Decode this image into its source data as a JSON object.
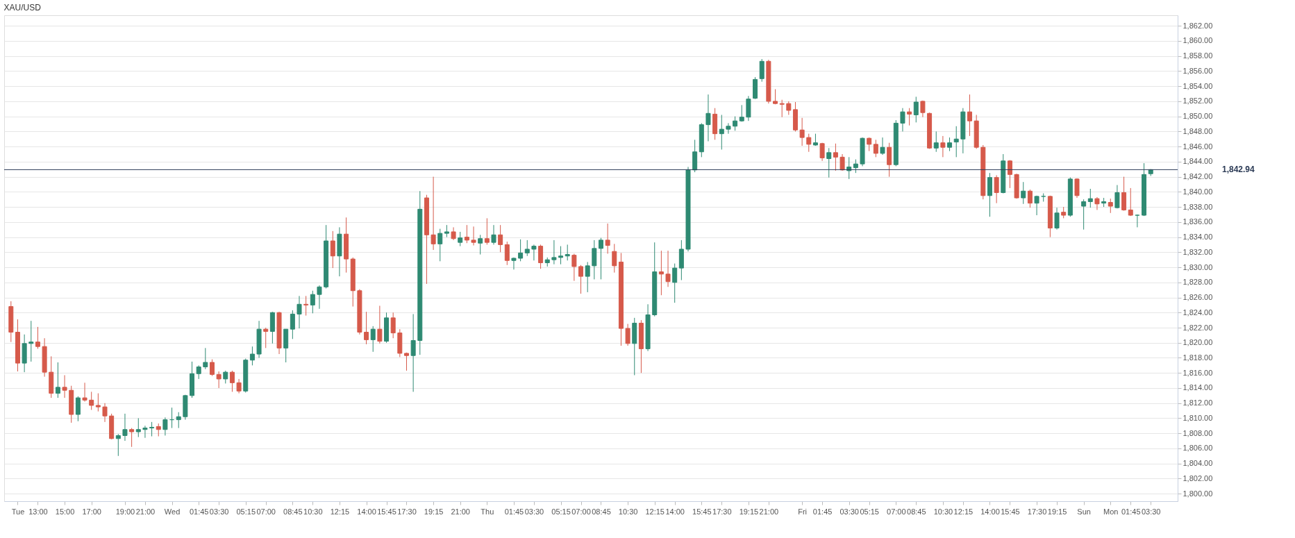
{
  "chart_data": {
    "type": "candlestick",
    "title": "XAU/USD",
    "categories": [
      null,
      "Tue",
      null,
      null,
      "13:00",
      null,
      null,
      null,
      "15:00",
      null,
      null,
      null,
      "17:00",
      null,
      null,
      null,
      null,
      "19:00",
      null,
      null,
      "21:00",
      null,
      null,
      null,
      "Wed",
      null,
      null,
      null,
      "01:45",
      null,
      null,
      "03:30",
      null,
      null,
      null,
      "05:15",
      null,
      null,
      "07:00",
      null,
      null,
      null,
      "08:45",
      null,
      null,
      "10:30",
      null,
      null,
      null,
      "12:15",
      null,
      null,
      null,
      "14:00",
      null,
      null,
      "15:45",
      null,
      null,
      "17:30",
      null,
      null,
      null,
      "19:15",
      null,
      null,
      null,
      "21:00",
      null,
      null,
      null,
      "Thu",
      null,
      null,
      null,
      "01:45",
      null,
      null,
      "03:30",
      null,
      null,
      null,
      "05:15",
      null,
      null,
      "07:00",
      null,
      null,
      "08:45",
      null,
      null,
      null,
      "10:30",
      null,
      null,
      null,
      "12:15",
      null,
      null,
      "14:00",
      null,
      null,
      null,
      "15:45",
      null,
      null,
      "17:30",
      null,
      null,
      null,
      "19:15",
      null,
      null,
      "21:00",
      null,
      null,
      null,
      null,
      "Fri",
      null,
      null,
      "01:45",
      null,
      null,
      null,
      "03:30",
      null,
      null,
      "05:15",
      null,
      null,
      null,
      "07:00",
      null,
      null,
      "08:45",
      null,
      null,
      null,
      "10:30",
      null,
      null,
      "12:15",
      null,
      null,
      null,
      "14:00",
      null,
      null,
      "15:45",
      null,
      null,
      null,
      "17:30",
      null,
      null,
      "19:15",
      null,
      null,
      null,
      "Sun",
      null,
      null,
      null,
      "Mon",
      null,
      null,
      "01:45",
      null,
      null,
      "03:30"
    ],
    "ohlc": [
      [
        1824.8,
        1825.5,
        1820.1,
        1821.4
      ],
      [
        1821.4,
        1823.1,
        1816.2,
        1817.3
      ],
      [
        1817.3,
        1821.1,
        1816.1,
        1819.9
      ],
      [
        1819.9,
        1822.9,
        1817.5,
        1820.1
      ],
      [
        1820.1,
        1822.1,
        1819.2,
        1819.5
      ],
      [
        1819.5,
        1820.6,
        1815.5,
        1816.1
      ],
      [
        1816.1,
        1818.2,
        1812.7,
        1813.3
      ],
      [
        1813.3,
        1817.4,
        1812.7,
        1814.1
      ],
      [
        1814.1,
        1815.7,
        1812.7,
        1813.7
      ],
      [
        1813.7,
        1814.3,
        1809.4,
        1810.5
      ],
      [
        1810.5,
        1812.9,
        1809.6,
        1812.7
      ],
      [
        1812.7,
        1814.7,
        1812.2,
        1812.4
      ],
      [
        1812.4,
        1813.5,
        1811.1,
        1811.7
      ],
      [
        1811.7,
        1813.3,
        1810.9,
        1811.5
      ],
      [
        1811.5,
        1812.0,
        1809.5,
        1810.3
      ],
      [
        1810.3,
        1810.6,
        1807.2,
        1807.3
      ],
      [
        1807.3,
        1807.9,
        1805.0,
        1807.7
      ],
      [
        1807.7,
        1810.6,
        1807.0,
        1808.5
      ],
      [
        1808.5,
        1808.7,
        1806.2,
        1808.2
      ],
      [
        1808.2,
        1810.0,
        1807.5,
        1808.5
      ],
      [
        1808.5,
        1809.0,
        1807.4,
        1808.7
      ],
      [
        1808.7,
        1809.5,
        1807.6,
        1808.8
      ],
      [
        1808.9,
        1809.3,
        1807.6,
        1808.5
      ],
      [
        1808.5,
        1810.1,
        1807.7,
        1809.8
      ],
      [
        1809.8,
        1811.4,
        1808.7,
        1809.8
      ],
      [
        1809.8,
        1810.8,
        1808.7,
        1810.2
      ],
      [
        1810.2,
        1813.1,
        1809.8,
        1813.0
      ],
      [
        1813.0,
        1817.5,
        1812.7,
        1815.9
      ],
      [
        1815.9,
        1817.0,
        1815.2,
        1816.8
      ],
      [
        1816.8,
        1819.3,
        1816.5,
        1817.4
      ],
      [
        1817.4,
        1817.8,
        1815.6,
        1815.8
      ],
      [
        1815.8,
        1816.2,
        1814.0,
        1815.2
      ],
      [
        1815.2,
        1816.3,
        1814.6,
        1816.1
      ],
      [
        1816.1,
        1816.3,
        1813.5,
        1814.7
      ],
      [
        1814.7,
        1815.2,
        1813.3,
        1813.6
      ],
      [
        1813.6,
        1817.9,
        1813.4,
        1817.7
      ],
      [
        1817.7,
        1819.5,
        1817.0,
        1818.5
      ],
      [
        1818.5,
        1822.9,
        1818.0,
        1821.8
      ],
      [
        1821.8,
        1822.0,
        1819.3,
        1821.5
      ],
      [
        1821.5,
        1824.1,
        1819.9,
        1824.0
      ],
      [
        1824.0,
        1824.1,
        1818.5,
        1819.3
      ],
      [
        1819.3,
        1821.8,
        1817.4,
        1821.8
      ],
      [
        1821.8,
        1824.3,
        1820.5,
        1823.8
      ],
      [
        1823.8,
        1826.2,
        1821.9,
        1825.1
      ],
      [
        1825.1,
        1826.2,
        1823.6,
        1825.0
      ],
      [
        1825.0,
        1826.9,
        1823.9,
        1826.4
      ],
      [
        1826.4,
        1827.6,
        1824.5,
        1827.4
      ],
      [
        1827.4,
        1835.6,
        1827.2,
        1833.5
      ],
      [
        1833.5,
        1834.8,
        1829.9,
        1831.5
      ],
      [
        1831.5,
        1835.3,
        1828.8,
        1834.4
      ],
      [
        1834.4,
        1836.6,
        1829.3,
        1831.1
      ],
      [
        1831.1,
        1831.3,
        1824.8,
        1826.9
      ],
      [
        1826.9,
        1827.1,
        1821.1,
        1821.4
      ],
      [
        1821.4,
        1824.1,
        1819.8,
        1820.4
      ],
      [
        1820.4,
        1822.2,
        1818.8,
        1821.8
      ],
      [
        1821.8,
        1824.9,
        1819.9,
        1820.2
      ],
      [
        1820.2,
        1824.0,
        1820.0,
        1823.3
      ],
      [
        1823.3,
        1824.0,
        1820.6,
        1821.3
      ],
      [
        1821.3,
        1821.8,
        1818.1,
        1818.6
      ],
      [
        1818.6,
        1818.7,
        1816.3,
        1818.3
      ],
      [
        1818.3,
        1823.8,
        1813.5,
        1820.3
      ],
      [
        1820.3,
        1840.1,
        1818.4,
        1837.7
      ],
      [
        1839.2,
        1839.6,
        1827.8,
        1834.3
      ],
      [
        1834.3,
        1842.0,
        1832.3,
        1833.1
      ],
      [
        1833.1,
        1835.1,
        1830.8,
        1834.5
      ],
      [
        1834.5,
        1835.6,
        1834.0,
        1834.7
      ],
      [
        1834.7,
        1835.3,
        1833.6,
        1833.8
      ],
      [
        1833.3,
        1834.7,
        1832.8,
        1833.9
      ],
      [
        1834.0,
        1835.6,
        1833.2,
        1833.6
      ],
      [
        1833.6,
        1835.4,
        1832.9,
        1833.3
      ],
      [
        1833.2,
        1834.3,
        1831.7,
        1833.8
      ],
      [
        1833.8,
        1836.5,
        1833.0,
        1833.3
      ],
      [
        1833.3,
        1835.6,
        1833.0,
        1834.3
      ],
      [
        1834.3,
        1835.6,
        1832.0,
        1833.0
      ],
      [
        1833.0,
        1833.4,
        1830.3,
        1830.9
      ],
      [
        1830.9,
        1831.3,
        1829.7,
        1831.2
      ],
      [
        1831.2,
        1833.7,
        1830.8,
        1831.9
      ],
      [
        1831.9,
        1833.6,
        1831.5,
        1832.4
      ],
      [
        1832.4,
        1833.0,
        1830.9,
        1832.8
      ],
      [
        1832.8,
        1833.0,
        1829.8,
        1830.6
      ],
      [
        1830.6,
        1831.3,
        1830.1,
        1831.0
      ],
      [
        1831.0,
        1833.6,
        1830.4,
        1831.3
      ],
      [
        1831.3,
        1832.8,
        1830.4,
        1831.5
      ],
      [
        1831.5,
        1833.0,
        1830.9,
        1831.7
      ],
      [
        1831.6,
        1831.8,
        1828.2,
        1830.1
      ],
      [
        1830.1,
        1830.3,
        1826.5,
        1828.8
      ],
      [
        1828.8,
        1830.7,
        1826.7,
        1830.2
      ],
      [
        1830.2,
        1833.6,
        1828.4,
        1832.5
      ],
      [
        1832.5,
        1833.9,
        1828.4,
        1833.6
      ],
      [
        1833.6,
        1835.8,
        1831.8,
        1832.9
      ],
      [
        1832.1,
        1833.1,
        1829.3,
        1830.2
      ],
      [
        1830.7,
        1831.9,
        1819.6,
        1821.9
      ],
      [
        1821.9,
        1822.5,
        1819.6,
        1819.9
      ],
      [
        1819.9,
        1823.3,
        1815.7,
        1822.6
      ],
      [
        1822.6,
        1823.0,
        1816.0,
        1819.2
      ],
      [
        1819.2,
        1825.1,
        1818.9,
        1823.7
      ],
      [
        1823.7,
        1833.3,
        1823.5,
        1829.4
      ],
      [
        1829.4,
        1832.2,
        1826.3,
        1829.1
      ],
      [
        1829.1,
        1832.2,
        1827.4,
        1828.1
      ],
      [
        1828.0,
        1830.5,
        1825.3,
        1829.9
      ],
      [
        1829.9,
        1833.6,
        1828.3,
        1832.4
      ],
      [
        1832.4,
        1843.3,
        1832.1,
        1842.9
      ],
      [
        1842.9,
        1846.9,
        1842.6,
        1845.3
      ],
      [
        1845.3,
        1849.1,
        1844.6,
        1848.9
      ],
      [
        1848.9,
        1852.9,
        1846.7,
        1850.4
      ],
      [
        1850.3,
        1851.1,
        1846.9,
        1847.7
      ],
      [
        1847.7,
        1850.2,
        1845.6,
        1848.3
      ],
      [
        1848.3,
        1849.1,
        1847.7,
        1848.7
      ],
      [
        1848.7,
        1850.0,
        1848.1,
        1849.4
      ],
      [
        1849.4,
        1851.5,
        1849.3,
        1849.9
      ],
      [
        1849.9,
        1852.7,
        1849.4,
        1852.3
      ],
      [
        1852.4,
        1855.2,
        1852.3,
        1854.9
      ],
      [
        1855.0,
        1857.6,
        1854.6,
        1857.3
      ],
      [
        1857.3,
        1857.5,
        1851.7,
        1852.0
      ],
      [
        1852.0,
        1853.6,
        1851.6,
        1851.7
      ],
      [
        1851.7,
        1852.2,
        1849.9,
        1851.6
      ],
      [
        1851.7,
        1852.0,
        1850.2,
        1850.8
      ],
      [
        1850.9,
        1851.9,
        1848.0,
        1848.2
      ],
      [
        1848.2,
        1849.8,
        1846.1,
        1847.2
      ],
      [
        1847.2,
        1847.7,
        1845.3,
        1846.3
      ],
      [
        1846.2,
        1847.7,
        1846.1,
        1846.5
      ],
      [
        1846.4,
        1846.5,
        1844.1,
        1844.5
      ],
      [
        1844.4,
        1845.8,
        1841.9,
        1845.2
      ],
      [
        1845.2,
        1846.4,
        1842.8,
        1844.6
      ],
      [
        1844.6,
        1845.0,
        1842.8,
        1842.9
      ],
      [
        1842.8,
        1844.6,
        1841.7,
        1843.3
      ],
      [
        1843.2,
        1844.3,
        1842.5,
        1843.7
      ],
      [
        1843.7,
        1847.2,
        1843.4,
        1847.1
      ],
      [
        1847.1,
        1847.2,
        1845.4,
        1846.3
      ],
      [
        1846.3,
        1846.9,
        1844.6,
        1845.1
      ],
      [
        1845.1,
        1847.2,
        1844.9,
        1845.9
      ],
      [
        1845.9,
        1846.5,
        1842.0,
        1843.6
      ],
      [
        1843.6,
        1849.5,
        1843.4,
        1849.1
      ],
      [
        1849.1,
        1851.1,
        1848.0,
        1850.6
      ],
      [
        1850.6,
        1851.1,
        1848.8,
        1850.3
      ],
      [
        1850.2,
        1852.6,
        1849.2,
        1851.9
      ],
      [
        1852.0,
        1852.1,
        1849.9,
        1850.5
      ],
      [
        1850.4,
        1850.5,
        1845.7,
        1845.8
      ],
      [
        1845.8,
        1848.0,
        1845.3,
        1846.5
      ],
      [
        1846.5,
        1847.4,
        1844.6,
        1845.9
      ],
      [
        1845.9,
        1847.2,
        1845.4,
        1846.5
      ],
      [
        1846.6,
        1848.7,
        1844.6,
        1847.0
      ],
      [
        1847.0,
        1851.1,
        1845.1,
        1850.6
      ],
      [
        1850.6,
        1852.9,
        1847.4,
        1849.4
      ],
      [
        1849.4,
        1850.2,
        1845.7,
        1845.9
      ],
      [
        1845.9,
        1846.2,
        1839.0,
        1839.5
      ],
      [
        1839.5,
        1842.5,
        1836.7,
        1841.9
      ],
      [
        1841.9,
        1842.2,
        1838.5,
        1839.9
      ],
      [
        1839.9,
        1845.0,
        1839.8,
        1844.1
      ],
      [
        1844.1,
        1844.2,
        1840.5,
        1842.3
      ],
      [
        1842.3,
        1842.4,
        1839.1,
        1839.2
      ],
      [
        1839.2,
        1841.3,
        1838.4,
        1840.1
      ],
      [
        1840.1,
        1840.3,
        1837.9,
        1838.5
      ],
      [
        1838.5,
        1839.5,
        1836.9,
        1839.4
      ],
      [
        1839.4,
        1839.8,
        1838.7,
        1839.4
      ],
      [
        1839.4,
        1839.5,
        1834.0,
        1835.2
      ],
      [
        1835.2,
        1837.9,
        1835.0,
        1837.2
      ],
      [
        1837.3,
        1838.0,
        1836.5,
        1836.9
      ],
      [
        1836.9,
        1841.9,
        1836.7,
        1841.7
      ],
      [
        1841.7,
        1841.8,
        1839.2,
        1839.5
      ],
      [
        1838.1,
        1839.0,
        1835.0,
        1838.7
      ],
      [
        1838.7,
        1840.4,
        1837.9,
        1839.1
      ],
      [
        1839.1,
        1839.3,
        1837.6,
        1838.4
      ],
      [
        1838.5,
        1839.2,
        1838.0,
        1838.7
      ],
      [
        1838.6,
        1839.1,
        1837.2,
        1838.1
      ],
      [
        1837.9,
        1840.9,
        1837.8,
        1839.9
      ],
      [
        1839.9,
        1842.0,
        1837.5,
        1837.6
      ],
      [
        1837.6,
        1840.5,
        1836.8,
        1836.9
      ],
      [
        1836.9,
        1837.0,
        1835.3,
        1836.9
      ],
      [
        1836.9,
        1843.8,
        1836.8,
        1842.3
      ],
      [
        1842.4,
        1843.0,
        1842.1,
        1842.94
      ]
    ],
    "colors": [
      "#d65a4b",
      "#d65a4b",
      "#2f8a73",
      "#2f8a73",
      "#d65a4b",
      "#d65a4b",
      "#d65a4b",
      "#2f8a73",
      "#d65a4b",
      "#d65a4b",
      "#2f8a73",
      "#d65a4b",
      "#d65a4b",
      "#d65a4b",
      "#d65a4b",
      "#d65a4b",
      "#2f8a73",
      "#2f8a73",
      "#d65a4b",
      "#2f8a73",
      "#2f8a73",
      "#2f8a73",
      "#d65a4b",
      "#2f8a73",
      "#2f8a73",
      "#2f8a73",
      "#2f8a73",
      "#2f8a73",
      "#2f8a73",
      "#2f8a73",
      "#d65a4b",
      "#d65a4b",
      "#2f8a73",
      "#d65a4b",
      "#d65a4b",
      "#2f8a73",
      "#2f8a73",
      "#2f8a73",
      "#d65a4b",
      "#2f8a73",
      "#d65a4b",
      "#2f8a73",
      "#2f8a73",
      "#2f8a73",
      "#d65a4b",
      "#2f8a73",
      "#2f8a73",
      "#2f8a73",
      "#d65a4b",
      "#2f8a73",
      "#d65a4b",
      "#d65a4b",
      "#d65a4b",
      "#d65a4b",
      "#2f8a73",
      "#d65a4b",
      "#2f8a73",
      "#d65a4b",
      "#d65a4b",
      "#d65a4b",
      "#2f8a73",
      "#2f8a73",
      "#d65a4b",
      "#d65a4b",
      "#2f8a73",
      "#2f8a73",
      "#d65a4b",
      "#2f8a73",
      "#d65a4b",
      "#d65a4b",
      "#2f8a73",
      "#d65a4b",
      "#2f8a73",
      "#d65a4b",
      "#d65a4b",
      "#2f8a73",
      "#2f8a73",
      "#2f8a73",
      "#2f8a73",
      "#d65a4b",
      "#2f8a73",
      "#2f8a73",
      "#2f8a73",
      "#2f8a73",
      "#d65a4b",
      "#d65a4b",
      "#2f8a73",
      "#2f8a73",
      "#2f8a73",
      "#d65a4b",
      "#d65a4b",
      "#d65a4b",
      "#d65a4b",
      "#2f8a73",
      "#d65a4b",
      "#2f8a73",
      "#2f8a73",
      "#d65a4b",
      "#d65a4b",
      "#2f8a73",
      "#2f8a73",
      "#2f8a73",
      "#2f8a73",
      "#2f8a73",
      "#2f8a73",
      "#d65a4b",
      "#2f8a73",
      "#2f8a73",
      "#2f8a73",
      "#2f8a73",
      "#2f8a73",
      "#2f8a73",
      "#2f8a73",
      "#d65a4b",
      "#d65a4b",
      "#d65a4b",
      "#d65a4b",
      "#d65a4b",
      "#d65a4b",
      "#d65a4b",
      "#2f8a73",
      "#d65a4b",
      "#2f8a73",
      "#d65a4b",
      "#d65a4b",
      "#2f8a73",
      "#2f8a73",
      "#2f8a73",
      "#d65a4b",
      "#d65a4b",
      "#2f8a73",
      "#d65a4b",
      "#2f8a73",
      "#2f8a73",
      "#d65a4b",
      "#2f8a73",
      "#d65a4b",
      "#d65a4b",
      "#2f8a73",
      "#d65a4b",
      "#2f8a73",
      "#2f8a73",
      "#2f8a73",
      "#d65a4b",
      "#d65a4b",
      "#d65a4b",
      "#2f8a73",
      "#d65a4b",
      "#2f8a73",
      "#d65a4b",
      "#d65a4b",
      "#2f8a73",
      "#d65a4b",
      "#2f8a73",
      "#2f8a73",
      "#d65a4b",
      "#2f8a73",
      "#d65a4b",
      "#2f8a73",
      "#d65a4b",
      "#2f8a73",
      "#2f8a73",
      "#d65a4b",
      "#2f8a73",
      "#d65a4b",
      "#2f8a73",
      "#d65a4b",
      "#d65a4b",
      "#2f8a73",
      "#2f8a73",
      "#2f8a73"
    ],
    "ylim": [
      1799,
      1863.4
    ],
    "yticks": [
      {
        "value": 1800,
        "label": "1,800.00"
      },
      {
        "value": 1802,
        "label": "1,802.00"
      },
      {
        "value": 1804,
        "label": "1,804.00"
      },
      {
        "value": 1806,
        "label": "1,806.00"
      },
      {
        "value": 1808,
        "label": "1,808.00"
      },
      {
        "value": 1810,
        "label": "1,810.00"
      },
      {
        "value": 1812,
        "label": "1,812.00"
      },
      {
        "value": 1814,
        "label": "1,814.00"
      },
      {
        "value": 1816,
        "label": "1,816.00"
      },
      {
        "value": 1818,
        "label": "1,818.00"
      },
      {
        "value": 1820,
        "label": "1,820.00"
      },
      {
        "value": 1822,
        "label": "1,822.00"
      },
      {
        "value": 1824,
        "label": "1,824.00"
      },
      {
        "value": 1826,
        "label": "1,826.00"
      },
      {
        "value": 1828,
        "label": "1,828.00"
      },
      {
        "value": 1830,
        "label": "1,830.00"
      },
      {
        "value": 1832,
        "label": "1,832.00"
      },
      {
        "value": 1834,
        "label": "1,834.00"
      },
      {
        "value": 1836,
        "label": "1,836.00"
      },
      {
        "value": 1838,
        "label": "1,838.00"
      },
      {
        "value": 1840,
        "label": "1,840.00"
      },
      {
        "value": 1842,
        "label": "1,842.00"
      },
      {
        "value": 1844,
        "label": "1,844.00"
      },
      {
        "value": 1846,
        "label": "1,846.00"
      },
      {
        "value": 1848,
        "label": "1,848.00"
      },
      {
        "value": 1850,
        "label": "1,850.00"
      },
      {
        "value": 1852,
        "label": "1,852.00"
      },
      {
        "value": 1854,
        "label": "1,854.00"
      },
      {
        "value": 1856,
        "label": "1,856.00"
      },
      {
        "value": 1858,
        "label": "1,858.00"
      },
      {
        "value": 1860,
        "label": "1,860.00"
      },
      {
        "value": 1862,
        "label": "1,862.00"
      }
    ],
    "grid": "y",
    "ref_lines": [
      {
        "axis": "y",
        "value": 1842.94,
        "label": "1,842.94",
        "color": "#2b3a55"
      }
    ]
  }
}
